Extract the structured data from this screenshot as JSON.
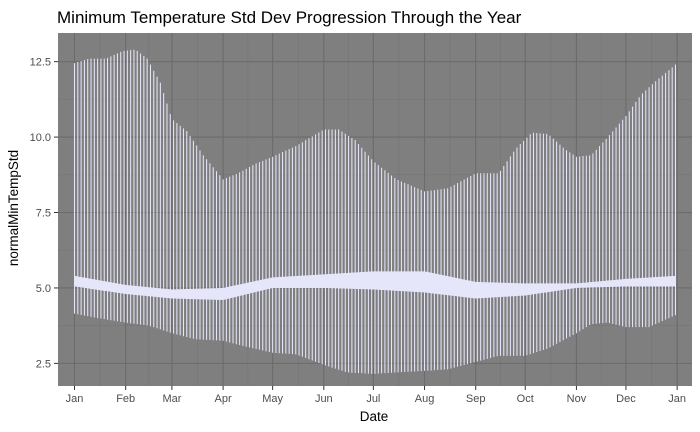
{
  "chart_data": {
    "type": "errorbar",
    "title": "Minimum Temperature Std Dev Progression Through the Year",
    "xlabel": "Date",
    "ylabel": "normalMinTempStd",
    "x_range": [
      "2017-12-22",
      "2019-01-10"
    ],
    "ylim": [
      1.75,
      13.45
    ],
    "x_ticks": [
      {
        "date": "2018-01-01",
        "label": "Jan"
      },
      {
        "date": "2018-02-01",
        "label": "Feb"
      },
      {
        "date": "2018-03-01",
        "label": "Mar"
      },
      {
        "date": "2018-04-01",
        "label": "Apr"
      },
      {
        "date": "2018-05-01",
        "label": "May"
      },
      {
        "date": "2018-06-01",
        "label": "Jun"
      },
      {
        "date": "2018-07-01",
        "label": "Jul"
      },
      {
        "date": "2018-08-01",
        "label": "Aug"
      },
      {
        "date": "2018-09-01",
        "label": "Sep"
      },
      {
        "date": "2018-10-01",
        "label": "Oct"
      },
      {
        "date": "2018-11-01",
        "label": "Nov"
      },
      {
        "date": "2018-12-01",
        "label": "Dec"
      },
      {
        "date": "2019-01-01",
        "label": "Jan"
      }
    ],
    "y_ticks": [
      2.5,
      5.0,
      7.5,
      10.0,
      12.5
    ],
    "y_tick_labels": [
      "2.5",
      "5.0",
      "7.5",
      "10.0",
      "12.5"
    ],
    "grid": true,
    "colors": {
      "panel_bg": "#7f7f7f",
      "grid_major": "#6b6b6b",
      "grid_minor": "#747474",
      "bar_color": "#e6e6fa",
      "band_color": "#e6e6fa"
    },
    "upper_profile": [
      {
        "date": "2018-01-01",
        "value": 12.45
      },
      {
        "date": "2018-01-10",
        "value": 12.6
      },
      {
        "date": "2018-01-20",
        "value": 12.6
      },
      {
        "date": "2018-01-30",
        "value": 12.85
      },
      {
        "date": "2018-02-07",
        "value": 12.9
      },
      {
        "date": "2018-02-14",
        "value": 12.6
      },
      {
        "date": "2018-02-22",
        "value": 11.8
      },
      {
        "date": "2018-03-01",
        "value": 10.6
      },
      {
        "date": "2018-03-10",
        "value": 10.2
      },
      {
        "date": "2018-03-20",
        "value": 9.4
      },
      {
        "date": "2018-04-01",
        "value": 8.6
      },
      {
        "date": "2018-04-10",
        "value": 8.8
      },
      {
        "date": "2018-04-20",
        "value": 9.1
      },
      {
        "date": "2018-05-01",
        "value": 9.35
      },
      {
        "date": "2018-05-15",
        "value": 9.7
      },
      {
        "date": "2018-06-01",
        "value": 10.25
      },
      {
        "date": "2018-06-10",
        "value": 10.25
      },
      {
        "date": "2018-06-20",
        "value": 9.9
      },
      {
        "date": "2018-07-01",
        "value": 9.2
      },
      {
        "date": "2018-07-15",
        "value": 8.6
      },
      {
        "date": "2018-08-01",
        "value": 8.2
      },
      {
        "date": "2018-08-15",
        "value": 8.3
      },
      {
        "date": "2018-09-01",
        "value": 8.8
      },
      {
        "date": "2018-09-15",
        "value": 8.8
      },
      {
        "date": "2018-09-25",
        "value": 9.6
      },
      {
        "date": "2018-10-05",
        "value": 10.15
      },
      {
        "date": "2018-10-15",
        "value": 10.1
      },
      {
        "date": "2018-10-25",
        "value": 9.6
      },
      {
        "date": "2018-11-01",
        "value": 9.35
      },
      {
        "date": "2018-11-10",
        "value": 9.4
      },
      {
        "date": "2018-11-20",
        "value": 10.0
      },
      {
        "date": "2018-12-01",
        "value": 10.7
      },
      {
        "date": "2018-12-10",
        "value": 11.4
      },
      {
        "date": "2018-12-20",
        "value": 11.9
      },
      {
        "date": "2018-12-31",
        "value": 12.4
      }
    ],
    "lower_profile": [
      {
        "date": "2018-01-01",
        "value": 4.15
      },
      {
        "date": "2018-01-15",
        "value": 4.0
      },
      {
        "date": "2018-02-01",
        "value": 3.85
      },
      {
        "date": "2018-02-15",
        "value": 3.75
      },
      {
        "date": "2018-03-01",
        "value": 3.5
      },
      {
        "date": "2018-03-15",
        "value": 3.3
      },
      {
        "date": "2018-04-01",
        "value": 3.25
      },
      {
        "date": "2018-04-15",
        "value": 3.05
      },
      {
        "date": "2018-05-01",
        "value": 2.85
      },
      {
        "date": "2018-05-15",
        "value": 2.8
      },
      {
        "date": "2018-06-01",
        "value": 2.45
      },
      {
        "date": "2018-06-15",
        "value": 2.2
      },
      {
        "date": "2018-07-01",
        "value": 2.15
      },
      {
        "date": "2018-07-15",
        "value": 2.2
      },
      {
        "date": "2018-08-01",
        "value": 2.25
      },
      {
        "date": "2018-08-15",
        "value": 2.3
      },
      {
        "date": "2018-09-01",
        "value": 2.55
      },
      {
        "date": "2018-09-15",
        "value": 2.75
      },
      {
        "date": "2018-10-01",
        "value": 2.75
      },
      {
        "date": "2018-10-15",
        "value": 3.0
      },
      {
        "date": "2018-11-01",
        "value": 3.5
      },
      {
        "date": "2018-11-10",
        "value": 3.8
      },
      {
        "date": "2018-11-20",
        "value": 3.85
      },
      {
        "date": "2018-12-01",
        "value": 3.7
      },
      {
        "date": "2018-12-15",
        "value": 3.7
      },
      {
        "date": "2018-12-31",
        "value": 4.1
      }
    ],
    "band_upper": [
      {
        "date": "2018-01-01",
        "value": 5.4
      },
      {
        "date": "2018-02-01",
        "value": 5.1
      },
      {
        "date": "2018-03-01",
        "value": 4.95
      },
      {
        "date": "2018-04-01",
        "value": 5.0
      },
      {
        "date": "2018-05-01",
        "value": 5.35
      },
      {
        "date": "2018-06-01",
        "value": 5.45
      },
      {
        "date": "2018-07-01",
        "value": 5.55
      },
      {
        "date": "2018-08-01",
        "value": 5.55
      },
      {
        "date": "2018-09-01",
        "value": 5.2
      },
      {
        "date": "2018-10-01",
        "value": 5.15
      },
      {
        "date": "2018-11-01",
        "value": 5.15
      },
      {
        "date": "2018-12-01",
        "value": 5.3
      },
      {
        "date": "2018-12-31",
        "value": 5.4
      }
    ],
    "band_lower": [
      {
        "date": "2018-01-01",
        "value": 5.05
      },
      {
        "date": "2018-02-01",
        "value": 4.8
      },
      {
        "date": "2018-03-01",
        "value": 4.65
      },
      {
        "date": "2018-04-01",
        "value": 4.6
      },
      {
        "date": "2018-05-01",
        "value": 5.0
      },
      {
        "date": "2018-06-01",
        "value": 5.0
      },
      {
        "date": "2018-07-01",
        "value": 4.95
      },
      {
        "date": "2018-08-01",
        "value": 4.85
      },
      {
        "date": "2018-09-01",
        "value": 4.65
      },
      {
        "date": "2018-10-01",
        "value": 4.75
      },
      {
        "date": "2018-11-01",
        "value": 5.0
      },
      {
        "date": "2018-12-01",
        "value": 5.05
      },
      {
        "date": "2018-12-31",
        "value": 5.05
      }
    ],
    "bar_spacing_days": 2
  }
}
